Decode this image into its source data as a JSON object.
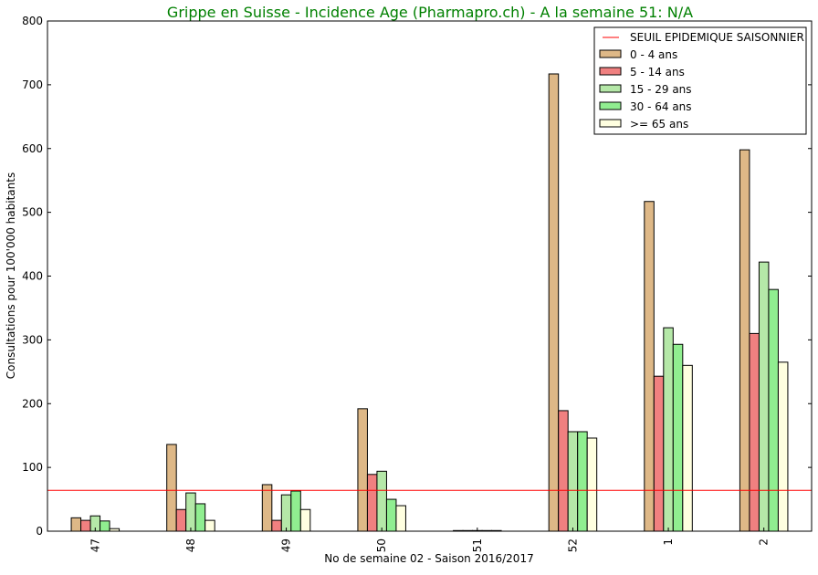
{
  "chart_data": {
    "type": "bar",
    "title": "Grippe en Suisse - Incidence Age (Pharmapro.ch) - A la semaine 51: N/A",
    "xlabel": "No de semaine 02 - Saison 2016/2017",
    "ylabel": "Consultations pour 100'000 habitants",
    "ylim": [
      0,
      800
    ],
    "yticks": [
      0,
      100,
      200,
      300,
      400,
      500,
      600,
      700,
      800
    ],
    "categories": [
      "47",
      "48",
      "49",
      "50",
      "51",
      "52",
      "1",
      "2"
    ],
    "threshold": {
      "name": "SEUIL EPIDEMIQUE SAISONNIER",
      "value": 64,
      "color": "#ff0000"
    },
    "series": [
      {
        "name": "0 - 4 ans",
        "color": "#deb887",
        "values": [
          21,
          136,
          73,
          192,
          1,
          717,
          517,
          598
        ]
      },
      {
        "name": "5 - 14 ans",
        "color": "#f08080",
        "values": [
          17,
          34,
          17,
          89,
          1,
          189,
          243,
          310
        ]
      },
      {
        "name": "15 - 29 ans",
        "color": "#b5e8a8",
        "values": [
          24,
          60,
          57,
          94,
          1,
          156,
          319,
          422
        ]
      },
      {
        "name": "30 - 64 ans",
        "color": "#90ee90",
        "values": [
          16,
          43,
          63,
          50,
          1,
          156,
          293,
          379
        ]
      },
      {
        "name": ">= 65 ans",
        "color": "#ffffe0",
        "values": [
          4,
          17,
          34,
          40,
          1,
          146,
          260,
          265
        ]
      }
    ],
    "legend_position": "top-right",
    "title_color": "#008000"
  }
}
